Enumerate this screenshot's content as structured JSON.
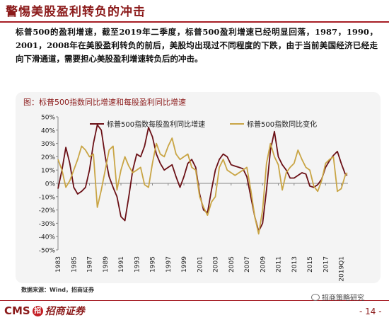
{
  "slide": {
    "title": "警惕美股盈利转负的冲击",
    "body": "标普500的盈利增速，截至2019年二季度，标普500盈利增速已经明显回落，1987，1990，2001，2008年在美股盈利转负的前后，美股均出现过不同程度的下跌，由于当前美国经济已经走向下滑通道，需要担心美股盈利增速转负后的冲击。",
    "source": "数据来源：Wind，招商证券",
    "page_number": "- 14 -",
    "watermark": "招商策略研究"
  },
  "logo": {
    "latin": "CMS",
    "mark": "招",
    "chinese": "招商证券"
  },
  "colors": {
    "eps_series": "#6b1016",
    "index_series": "#c9a545",
    "brand": "#a61d24"
  },
  "chart_data": {
    "type": "line",
    "title": "图：标普500指数同比增速和每股盈利同比增速",
    "x_tick_labels": [
      "1983",
      "1985",
      "1987",
      "1989",
      "1991",
      "1993",
      "1995",
      "1997",
      "1999",
      "2001",
      "2003",
      "2005",
      "2007",
      "2009",
      "2011",
      "2013",
      "2015",
      "2017",
      "2019Q1"
    ],
    "ylim": [
      -50,
      50
    ],
    "y_ticks": [
      50,
      40,
      30,
      20,
      10,
      0,
      -10,
      -20,
      -30,
      -40,
      -50
    ],
    "y_tick_format": "percent",
    "grid": false,
    "legend_position": "top",
    "series": [
      {
        "name": "标普500指数每股盈利同比增速",
        "color": "#6b1016",
        "points": [
          [
            1983.0,
            -4
          ],
          [
            1983.5,
            10
          ],
          [
            1984.0,
            27
          ],
          [
            1984.5,
            15
          ],
          [
            1985.0,
            -3
          ],
          [
            1985.5,
            -8
          ],
          [
            1986.0,
            -6
          ],
          [
            1986.5,
            -3
          ],
          [
            1987.0,
            10
          ],
          [
            1987.5,
            30
          ],
          [
            1988.0,
            44
          ],
          [
            1988.5,
            40
          ],
          [
            1989.0,
            20
          ],
          [
            1989.5,
            5
          ],
          [
            1990.0,
            -3
          ],
          [
            1990.5,
            -10
          ],
          [
            1991.0,
            -25
          ],
          [
            1991.5,
            -28
          ],
          [
            1992.0,
            -10
          ],
          [
            1992.5,
            10
          ],
          [
            1993.0,
            22
          ],
          [
            1993.5,
            20
          ],
          [
            1994.0,
            28
          ],
          [
            1994.5,
            42
          ],
          [
            1995.0,
            35
          ],
          [
            1995.5,
            22
          ],
          [
            1996.0,
            15
          ],
          [
            1996.5,
            10
          ],
          [
            1997.0,
            12
          ],
          [
            1997.5,
            14
          ],
          [
            1998.0,
            5
          ],
          [
            1998.5,
            -3
          ],
          [
            1999.0,
            5
          ],
          [
            1999.5,
            15
          ],
          [
            2000.0,
            18
          ],
          [
            2000.5,
            12
          ],
          [
            2001.0,
            -8
          ],
          [
            2001.5,
            -20
          ],
          [
            2002.0,
            -22
          ],
          [
            2002.5,
            -5
          ],
          [
            2003.0,
            10
          ],
          [
            2003.5,
            18
          ],
          [
            2004.0,
            22
          ],
          [
            2004.5,
            20
          ],
          [
            2005.0,
            14
          ],
          [
            2005.5,
            13
          ],
          [
            2006.0,
            12
          ],
          [
            2006.5,
            11
          ],
          [
            2007.0,
            5
          ],
          [
            2007.5,
            -10
          ],
          [
            2008.0,
            -25
          ],
          [
            2008.5,
            -36
          ],
          [
            2009.0,
            -30
          ],
          [
            2009.5,
            -5
          ],
          [
            2010.0,
            25
          ],
          [
            2010.5,
            39
          ],
          [
            2011.0,
            20
          ],
          [
            2011.5,
            14
          ],
          [
            2012.0,
            10
          ],
          [
            2012.5,
            4
          ],
          [
            2013.0,
            4
          ],
          [
            2013.5,
            6
          ],
          [
            2014.0,
            8
          ],
          [
            2014.5,
            7
          ],
          [
            2015.0,
            -2
          ],
          [
            2015.5,
            -3
          ],
          [
            2016.0,
            -1
          ],
          [
            2016.5,
            3
          ],
          [
            2017.0,
            12
          ],
          [
            2017.5,
            17
          ],
          [
            2018.0,
            21
          ],
          [
            2018.5,
            24
          ],
          [
            2019.0,
            15
          ],
          [
            2019.5,
            7
          ],
          [
            2019.75,
            6
          ]
        ]
      },
      {
        "name": "标普500指数同比变化",
        "color": "#c9a545",
        "points": [
          [
            1983.0,
            18
          ],
          [
            1983.5,
            10
          ],
          [
            1984.0,
            -3
          ],
          [
            1984.5,
            2
          ],
          [
            1985.0,
            10
          ],
          [
            1985.5,
            18
          ],
          [
            1986.0,
            28
          ],
          [
            1986.5,
            25
          ],
          [
            1987.0,
            20
          ],
          [
            1987.5,
            22
          ],
          [
            1988.0,
            -18
          ],
          [
            1988.5,
            -5
          ],
          [
            1989.0,
            10
          ],
          [
            1989.5,
            25
          ],
          [
            1990.0,
            28
          ],
          [
            1990.5,
            -5
          ],
          [
            1991.0,
            10
          ],
          [
            1991.5,
            20
          ],
          [
            1992.0,
            13
          ],
          [
            1992.5,
            8
          ],
          [
            1993.0,
            10
          ],
          [
            1993.5,
            12
          ],
          [
            1994.0,
            -1
          ],
          [
            1994.5,
            -3
          ],
          [
            1995.0,
            15
          ],
          [
            1995.5,
            30
          ],
          [
            1996.0,
            22
          ],
          [
            1996.5,
            20
          ],
          [
            1997.0,
            28
          ],
          [
            1997.5,
            34
          ],
          [
            1998.0,
            22
          ],
          [
            1998.5,
            18
          ],
          [
            1999.0,
            20
          ],
          [
            1999.5,
            22
          ],
          [
            2000.0,
            12
          ],
          [
            2000.5,
            10
          ],
          [
            2001.0,
            -10
          ],
          [
            2001.5,
            -18
          ],
          [
            2002.0,
            -24
          ],
          [
            2002.5,
            -14
          ],
          [
            2003.0,
            -10
          ],
          [
            2003.5,
            12
          ],
          [
            2004.0,
            18
          ],
          [
            2004.5,
            10
          ],
          [
            2005.0,
            8
          ],
          [
            2005.5,
            6
          ],
          [
            2006.0,
            8
          ],
          [
            2006.5,
            10
          ],
          [
            2007.0,
            12
          ],
          [
            2007.5,
            -5
          ],
          [
            2008.0,
            -25
          ],
          [
            2008.5,
            -38
          ],
          [
            2009.0,
            -20
          ],
          [
            2009.5,
            15
          ],
          [
            2010.0,
            30
          ],
          [
            2010.5,
            20
          ],
          [
            2011.0,
            14
          ],
          [
            2011.5,
            -5
          ],
          [
            2012.0,
            8
          ],
          [
            2012.5,
            12
          ],
          [
            2013.0,
            15
          ],
          [
            2013.5,
            25
          ],
          [
            2014.0,
            18
          ],
          [
            2014.5,
            12
          ],
          [
            2015.0,
            10
          ],
          [
            2015.5,
            -2
          ],
          [
            2016.0,
            -6
          ],
          [
            2016.5,
            2
          ],
          [
            2017.0,
            15
          ],
          [
            2017.5,
            18
          ],
          [
            2018.0,
            20
          ],
          [
            2018.5,
            -6
          ],
          [
            2019.0,
            -4
          ],
          [
            2019.5,
            6
          ],
          [
            2019.75,
            8
          ]
        ]
      }
    ]
  }
}
